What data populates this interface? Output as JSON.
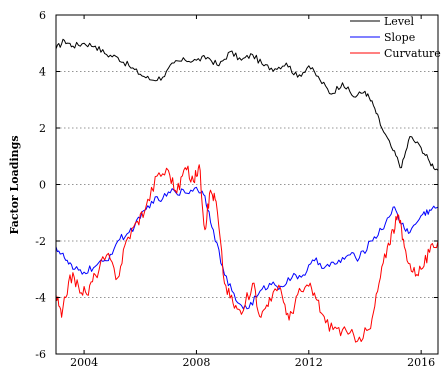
{
  "chart_data": {
    "type": "line",
    "ylabel": "Factor Loadings",
    "xlim": [
      2003.0,
      2016.6
    ],
    "ylim": [
      -6,
      6
    ],
    "x_ticks": [
      2004,
      2008,
      2012,
      2016
    ],
    "y_ticks": [
      6,
      4,
      2,
      0,
      -2,
      -4,
      -6
    ],
    "x_tick_labels": [
      "2004",
      "2008",
      "2012",
      "2016"
    ],
    "y_tick_labels": [
      "6",
      "4",
      "2",
      "0",
      "-2",
      "-4",
      "-6"
    ],
    "grid": "horizontal dotted",
    "legend_position": "top-right",
    "series": [
      {
        "name": "Level",
        "color": "#000000",
        "x": [
          2003.0,
          2003.3,
          2003.6,
          2004.0,
          2004.4,
          2004.8,
          2005.2,
          2005.6,
          2006.0,
          2006.4,
          2006.8,
          2007.2,
          2007.6,
          2008.0,
          2008.4,
          2008.8,
          2009.2,
          2009.6,
          2010.0,
          2010.4,
          2010.8,
          2011.2,
          2011.6,
          2012.0,
          2012.4,
          2012.8,
          2013.2,
          2013.6,
          2014.0,
          2014.3,
          2014.6,
          2015.0,
          2015.3,
          2015.6,
          2016.0,
          2016.3,
          2016.6
        ],
        "values": [
          4.8,
          5.1,
          4.9,
          5.0,
          4.9,
          4.6,
          4.5,
          4.2,
          3.9,
          3.7,
          3.8,
          4.3,
          4.4,
          4.4,
          4.5,
          4.2,
          4.7,
          4.4,
          4.6,
          4.2,
          4.1,
          4.3,
          3.8,
          4.2,
          3.7,
          3.2,
          3.6,
          3.1,
          3.3,
          2.8,
          2.0,
          1.2,
          0.6,
          1.7,
          1.3,
          0.8,
          0.5
        ]
      },
      {
        "name": "Slope",
        "color": "#0000ff",
        "x": [
          2003.0,
          2003.3,
          2003.6,
          2004.0,
          2004.4,
          2004.8,
          2005.2,
          2005.6,
          2006.0,
          2006.4,
          2006.8,
          2007.2,
          2007.6,
          2008.0,
          2008.3,
          2008.6,
          2009.0,
          2009.4,
          2009.8,
          2010.2,
          2010.6,
          2011.0,
          2011.4,
          2011.8,
          2012.2,
          2012.6,
          2013.0,
          2013.4,
          2013.8,
          2014.2,
          2014.6,
          2015.0,
          2015.3,
          2015.6,
          2016.0,
          2016.3,
          2016.6
        ],
        "values": [
          -2.2,
          -2.6,
          -3.0,
          -3.1,
          -2.9,
          -2.7,
          -2.0,
          -1.7,
          -1.2,
          -0.6,
          -0.5,
          -0.2,
          -0.3,
          -0.1,
          -0.4,
          -1.6,
          -3.2,
          -4.1,
          -4.4,
          -3.9,
          -3.5,
          -3.6,
          -3.3,
          -3.2,
          -2.7,
          -2.9,
          -2.8,
          -2.5,
          -2.6,
          -2.0,
          -1.6,
          -0.8,
          -1.4,
          -1.7,
          -1.1,
          -0.9,
          -0.8
        ]
      },
      {
        "name": "Curvature",
        "color": "#ff0000",
        "x": [
          2003.0,
          2003.2,
          2003.5,
          2003.8,
          2004.1,
          2004.4,
          2004.8,
          2005.2,
          2005.5,
          2005.9,
          2006.2,
          2006.6,
          2007.0,
          2007.3,
          2007.6,
          2007.9,
          2008.1,
          2008.3,
          2008.5,
          2008.7,
          2009.0,
          2009.3,
          2009.6,
          2010.0,
          2010.3,
          2010.6,
          2011.0,
          2011.3,
          2011.6,
          2012.0,
          2012.3,
          2012.6,
          2013.0,
          2013.4,
          2013.8,
          2014.2,
          2014.5,
          2014.8,
          2015.0,
          2015.2,
          2015.4,
          2015.7,
          2016.0,
          2016.3,
          2016.6
        ],
        "values": [
          -3.9,
          -4.7,
          -3.2,
          -3.6,
          -3.9,
          -3.2,
          -2.5,
          -3.3,
          -2.0,
          -1.3,
          -0.8,
          0.3,
          0.5,
          -0.3,
          0.6,
          0.1,
          0.7,
          -1.6,
          -0.2,
          -0.6,
          -3.5,
          -4.2,
          -4.6,
          -3.5,
          -4.7,
          -4.0,
          -3.7,
          -4.8,
          -3.9,
          -3.6,
          -4.1,
          -4.9,
          -5.1,
          -5.3,
          -5.4,
          -5.1,
          -3.5,
          -2.2,
          -1.6,
          -1.1,
          -2.2,
          -3.1,
          -3.0,
          -2.4,
          -2.0
        ]
      }
    ]
  }
}
